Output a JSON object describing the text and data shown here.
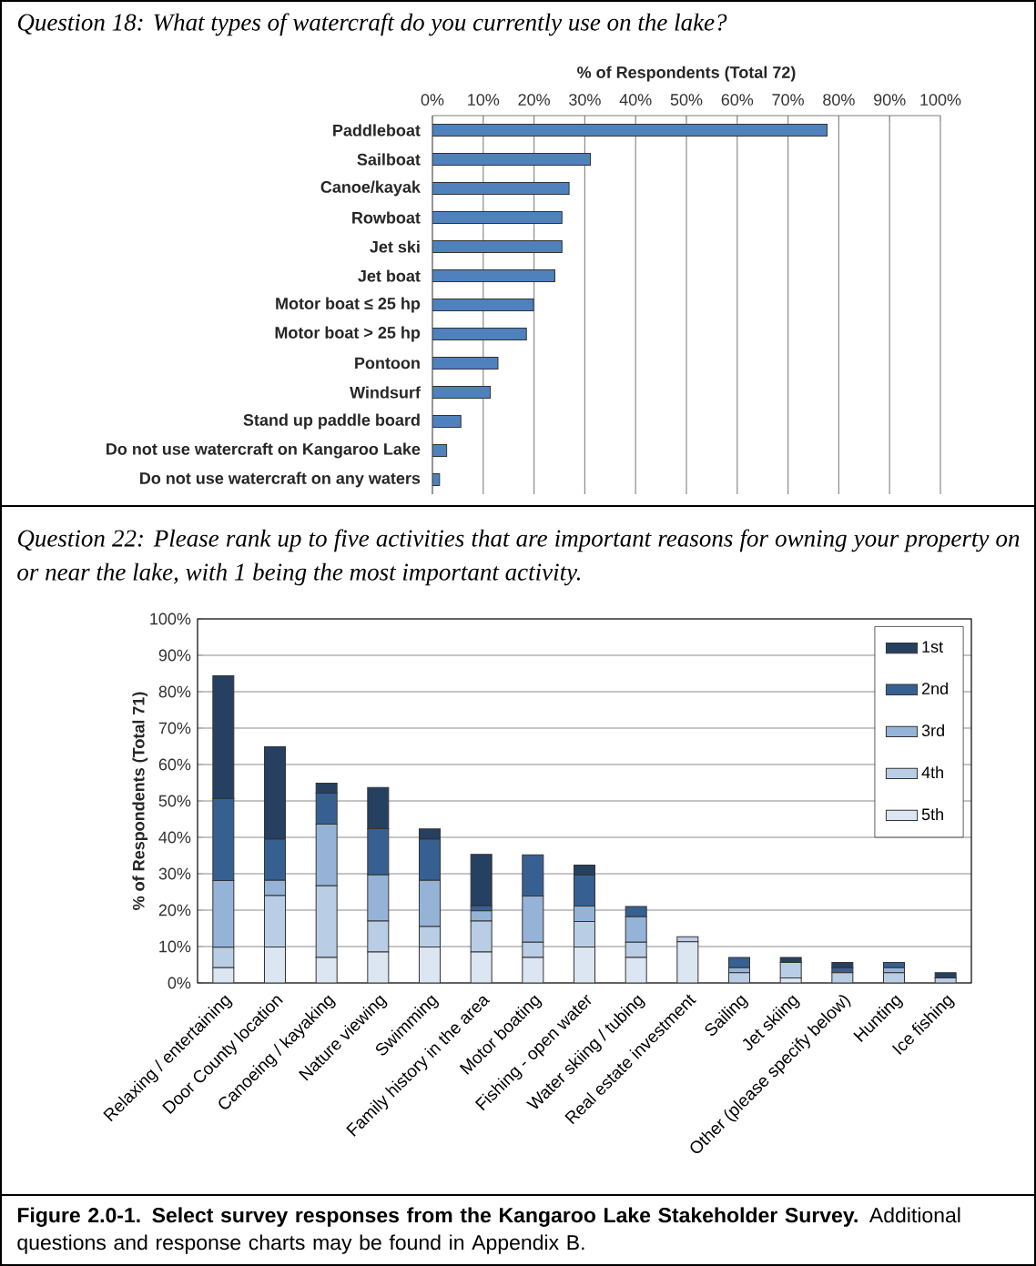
{
  "chart_data": [
    {
      "type": "bar",
      "orientation": "horizontal",
      "title": "Question 18:  What types of watercraft do you currently use on the lake?",
      "xlabel": "% of Respondents (Total 72)",
      "categories": [
        "Paddleboat",
        "Sailboat",
        "Canoe/kayak",
        "Rowboat",
        "Jet ski",
        "Jet boat",
        "Motor boat ≤ 25 hp",
        "Motor boat > 25 hp",
        "Pontoon",
        "Windsurf",
        "Stand up paddle board",
        "Do not use watercraft on Kangaroo Lake",
        "Do not use watercraft on any waters"
      ],
      "values": [
        77.7,
        31.1,
        26.9,
        25.5,
        25.5,
        24.1,
        19.9,
        18.5,
        12.9,
        11.4,
        5.6,
        2.8,
        1.4
      ],
      "color": "#4f81bd",
      "xlim": [
        0,
        100
      ],
      "xticks": [
        {
          "value": 0,
          "label": "0%"
        },
        {
          "value": 10,
          "label": "10%"
        },
        {
          "value": 20,
          "label": "20%"
        },
        {
          "value": 30,
          "label": "30%"
        },
        {
          "value": 40,
          "label": "40%"
        },
        {
          "value": 50,
          "label": "50%"
        },
        {
          "value": 60,
          "label": "60%"
        },
        {
          "value": 70,
          "label": "70%"
        },
        {
          "value": 80,
          "label": "80%"
        },
        {
          "value": 90,
          "label": "90%"
        },
        {
          "value": 100,
          "label": "100%"
        }
      ],
      "grid": "x"
    },
    {
      "type": "bar",
      "stacked": true,
      "title": "Question 22:  Please rank up to five activities that are important reasons for owning your property on or near the lake, with 1 being the most important activity.",
      "ylabel": "% of Respondents (Total 71)",
      "categories": [
        "Relaxing / entertaining",
        "Door County location",
        "Canoeing / kayaking",
        "Nature viewing",
        "Swimming",
        "Family history in the area",
        "Motor boating",
        "Fishing - open water",
        "Water skiing / tubing",
        "Real estate investment",
        "Sailing",
        "Jet skiing",
        "Other (please specify below)",
        "Hunting",
        "Ice fishing"
      ],
      "series": [
        {
          "name": "5th",
          "color": "#dce6f2",
          "values": [
            4.2,
            9.9,
            7.0,
            8.5,
            9.9,
            8.5,
            7.0,
            9.9,
            7.0,
            11.3,
            null,
            1.4,
            null,
            null,
            null
          ]
        },
        {
          "name": "4th",
          "color": "#b9cde5",
          "values": [
            5.6,
            14.1,
            19.7,
            8.5,
            5.6,
            8.5,
            4.2,
            7.0,
            4.2,
            1.4,
            2.8,
            4.2,
            2.8,
            2.8,
            1.4
          ]
        },
        {
          "name": "3rd",
          "color": "#95b3d7",
          "values": [
            18.3,
            4.2,
            16.9,
            12.7,
            12.7,
            2.8,
            12.7,
            4.2,
            7.0,
            null,
            1.4,
            null,
            null,
            1.4,
            null
          ]
        },
        {
          "name": "2nd",
          "color": "#376092",
          "values": [
            22.5,
            11.3,
            8.5,
            12.7,
            11.3,
            1.4,
            11.3,
            8.5,
            2.8,
            null,
            2.8,
            null,
            1.4,
            1.4,
            null
          ]
        },
        {
          "name": "1st",
          "color": "#254061",
          "values": [
            33.8,
            25.4,
            2.8,
            11.3,
            2.8,
            14.1,
            null,
            2.8,
            null,
            null,
            null,
            1.4,
            1.4,
            null,
            1.4
          ]
        }
      ],
      "ylim": [
        0,
        100
      ],
      "yticks": [
        {
          "value": 0,
          "label": "0%"
        },
        {
          "value": 10,
          "label": "10%"
        },
        {
          "value": 20,
          "label": "20%"
        },
        {
          "value": 30,
          "label": "30%"
        },
        {
          "value": 40,
          "label": "40%"
        },
        {
          "value": 50,
          "label": "50%"
        },
        {
          "value": 60,
          "label": "60%"
        },
        {
          "value": 70,
          "label": "70%"
        },
        {
          "value": 80,
          "label": "80%"
        },
        {
          "value": 90,
          "label": "90%"
        },
        {
          "value": 100,
          "label": "100%"
        }
      ],
      "grid": "y",
      "legend": "top right",
      "annotations": [
        "**Figure 2.0-1.  Select survey responses from the Kangaroo Lake Stakeholder Survey.** Additional questions and response charts may be found in Appendix B."
      ]
    }
  ]
}
